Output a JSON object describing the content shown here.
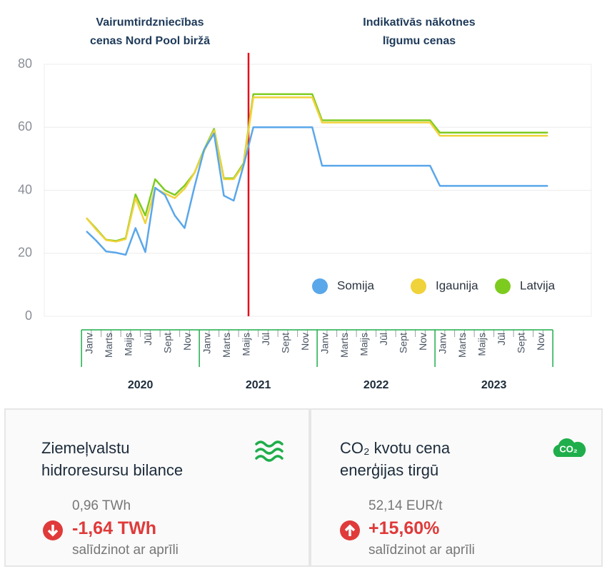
{
  "chart_data": {
    "type": "line",
    "annotations": [
      {
        "lines": [
          "Vairumtirdzniecības",
          "cenas Nord Pool biržā"
        ]
      },
      {
        "lines": [
          "Indikatīvās nākotnes",
          "līgumu cenas"
        ]
      }
    ],
    "categories": [
      "Janv",
      null,
      "Marts",
      null,
      "Maijs",
      null,
      "Jūl",
      null,
      "Sept",
      null,
      "Nov",
      null,
      "Janv",
      null,
      "Marts",
      null,
      "Maijs",
      null,
      "Jūl",
      null,
      "Sept",
      null,
      "Nov",
      null,
      "Janv",
      null,
      "Marts",
      null,
      "Maijs",
      null,
      "Jūl",
      null,
      "Sept",
      null,
      "Nov",
      null,
      "Janv",
      null,
      "Marts",
      null,
      "Maijs",
      null,
      "Jūl",
      null,
      "Sept",
      null,
      "Nov",
      null
    ],
    "years": [
      "2020",
      "2021",
      "2022",
      "2023"
    ],
    "ylim": [
      0,
      80
    ],
    "yticks": [
      0,
      20,
      40,
      60,
      80
    ],
    "grid": true,
    "legend": "bottom-right",
    "series": [
      {
        "name": "Somija",
        "color": "#5aa7ea",
        "values": [
          27,
          24,
          20.6,
          20.2,
          19.5,
          28,
          20.4,
          40.8,
          38.5,
          32,
          28,
          41,
          53,
          58,
          38.3,
          36.7,
          47.8,
          60,
          60,
          60,
          60,
          60,
          60,
          60,
          47.8,
          47.8,
          47.8,
          47.8,
          47.8,
          47.8,
          47.8,
          47.8,
          47.8,
          47.8,
          47.8,
          47.8,
          41.4,
          41.4,
          41.4,
          41.4,
          41.4,
          41.4,
          41.4,
          41.4,
          41.4,
          41.4,
          41.4,
          41.4
        ]
      },
      {
        "name": "Igaunija",
        "color": "#f0d23a",
        "values": [
          31.2,
          27.5,
          24.2,
          23.7,
          24.5,
          37.5,
          29.5,
          40.5,
          39,
          37.5,
          40.5,
          45.5,
          52.5,
          59,
          43.5,
          43.5,
          48,
          69.5,
          69.5,
          69.5,
          69.5,
          69.5,
          69.5,
          69.5,
          61.5,
          61.5,
          61.5,
          61.5,
          61.5,
          61.5,
          61.5,
          61.5,
          61.5,
          61.5,
          61.5,
          61.5,
          57.3,
          57.3,
          57.3,
          57.3,
          57.3,
          57.3,
          57.3,
          57.3,
          57.3,
          57.3,
          57.3,
          57.3
        ]
      },
      {
        "name": "Latvija",
        "color": "#7ecb20",
        "values": [
          31.2,
          27.8,
          24.3,
          23.9,
          24.8,
          38.7,
          32,
          43.5,
          40,
          38.5,
          41.5,
          45.5,
          53,
          59.5,
          43.8,
          43.8,
          48.5,
          70.5,
          70.5,
          70.5,
          70.5,
          70.5,
          70.5,
          70.5,
          62.2,
          62.2,
          62.2,
          62.2,
          62.2,
          62.2,
          62.2,
          62.2,
          62.2,
          62.2,
          62.2,
          62.2,
          58.3,
          58.3,
          58.3,
          58.3,
          58.3,
          58.3,
          58.3,
          58.3,
          58.3,
          58.3,
          58.3,
          58.3
        ]
      }
    ]
  },
  "cards": [
    {
      "title": [
        "Ziemeļvalstu",
        "hidroresursu bilance"
      ],
      "previous": "0,96 TWh",
      "change": "-1,64 TWh",
      "note": "salīdzinot ar aprīli"
    },
    {
      "title": [
        "CO₂ kvotu cena",
        "enerģijas tirgū"
      ],
      "icon_label": "CO₂",
      "previous": "52,14 EUR/t",
      "change": "+15,60%",
      "note": "salīdzinot ar aprīli"
    }
  ]
}
